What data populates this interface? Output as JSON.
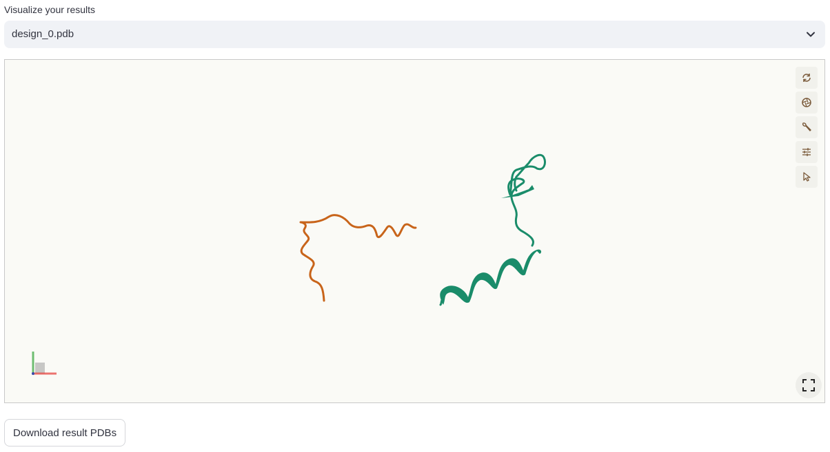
{
  "section": {
    "label": "Visualize your results"
  },
  "file_select": {
    "selected": "design_0.pdb",
    "icon": "chevron-down-icon"
  },
  "viewer": {
    "toolbar": [
      {
        "name": "spin-icon"
      },
      {
        "name": "screenshot-icon"
      },
      {
        "name": "settings-wrench-icon"
      },
      {
        "name": "controls-sliders-icon"
      },
      {
        "name": "pointer-icon"
      }
    ],
    "fullscreen_icon": "fullscreen-icon",
    "chain_colors": {
      "chain_a": "#c8641a",
      "chain_b": "#1a8c6a"
    },
    "background": "#fafaf6"
  },
  "actions": {
    "download_label": "Download result PDBs"
  }
}
